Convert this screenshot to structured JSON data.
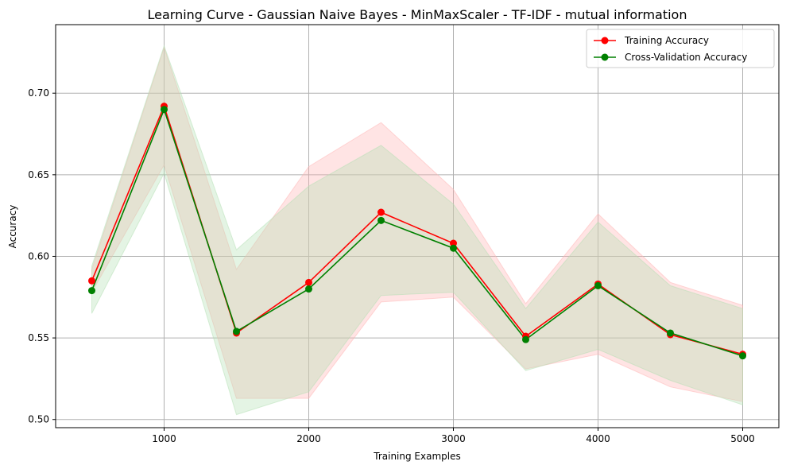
{
  "chart_data": {
    "type": "line",
    "title": "Learning Curve - Gaussian Naive Bayes - MinMaxScaler - TF-IDF - mutual information",
    "xlabel": "Training Examples",
    "ylabel": "Accuracy",
    "xlim": [
      250,
      5250
    ],
    "ylim": [
      0.495,
      0.742
    ],
    "xticks": [
      1000,
      2000,
      3000,
      4000,
      5000
    ],
    "xtick_labels": [
      "1000",
      "2000",
      "3000",
      "4000",
      "5000"
    ],
    "yticks": [
      0.5,
      0.55,
      0.6,
      0.65,
      0.7
    ],
    "ytick_labels": [
      "0.50",
      "0.55",
      "0.60",
      "0.65",
      "0.70"
    ],
    "grid": true,
    "legend_position": "top-right",
    "x": [
      500,
      1000,
      1500,
      2000,
      2500,
      3000,
      3500,
      4000,
      4500,
      5000
    ],
    "series": [
      {
        "name": "Training Accuracy",
        "color": "#ff0000",
        "band_color": "#ffb3b3",
        "values": [
          0.585,
          0.692,
          0.553,
          0.584,
          0.627,
          0.608,
          0.551,
          0.583,
          0.552,
          0.54
        ],
        "lower": [
          0.578,
          0.656,
          0.513,
          0.513,
          0.572,
          0.575,
          0.531,
          0.54,
          0.52,
          0.511
        ],
        "upper": [
          0.592,
          0.728,
          0.592,
          0.655,
          0.682,
          0.641,
          0.571,
          0.626,
          0.584,
          0.57
        ]
      },
      {
        "name": "Cross-Validation Accuracy",
        "color": "#008000",
        "band_color": "#b3e0b3",
        "values": [
          0.579,
          0.69,
          0.554,
          0.58,
          0.622,
          0.605,
          0.549,
          0.582,
          0.553,
          0.539
        ],
        "lower": [
          0.565,
          0.651,
          0.503,
          0.517,
          0.576,
          0.578,
          0.53,
          0.543,
          0.524,
          0.509
        ],
        "upper": [
          0.594,
          0.729,
          0.604,
          0.643,
          0.668,
          0.632,
          0.568,
          0.621,
          0.582,
          0.568
        ]
      }
    ]
  }
}
